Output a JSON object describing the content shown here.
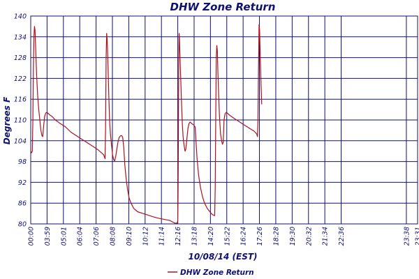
{
  "chart_data": {
    "type": "line",
    "title": "DHW Zone Return",
    "xlabel": "10/08/14 (EST)",
    "ylabel": "Degrees F",
    "ylim": [
      80,
      140
    ],
    "yticks": [
      80,
      86,
      92,
      98,
      104,
      110,
      116,
      122,
      128,
      134,
      140
    ],
    "xlim": [
      0,
      1447
    ],
    "xticks": [
      {
        "label": "00:00",
        "t": 0
      },
      {
        "label": "03:59",
        "t": 61.1
      },
      {
        "label": "05:01",
        "t": 122.2
      },
      {
        "label": "06:04",
        "t": 183.3
      },
      {
        "label": "07:06",
        "t": 244.4
      },
      {
        "label": "08:08",
        "t": 305.5
      },
      {
        "label": "09:10",
        "t": 366.7
      },
      {
        "label": "10:12",
        "t": 427.8
      },
      {
        "label": "11:14",
        "t": 488.9
      },
      {
        "label": "12:16",
        "t": 550.0
      },
      {
        "label": "13:18",
        "t": 611.1
      },
      {
        "label": "14:20",
        "t": 672.2
      },
      {
        "label": "15:22",
        "t": 733.3
      },
      {
        "label": "16:24",
        "t": 794.4
      },
      {
        "label": "17:26",
        "t": 855.5
      },
      {
        "label": "18:28",
        "t": 916.6
      },
      {
        "label": "19:30",
        "t": 977.8
      },
      {
        "label": "20:32",
        "t": 1038.9
      },
      {
        "label": "21:34",
        "t": 1100.0
      },
      {
        "label": "22:36",
        "t": 1161.1
      },
      {
        "label": "23:38",
        "t": 1405.0
      },
      {
        "label": "23:31",
        "t": 1447.0
      }
    ],
    "grid": true,
    "legend_position": "bottom-center",
    "series": [
      {
        "name": "DHW Zone Return",
        "color": "#b0101a",
        "points": [
          [
            0,
            101
          ],
          [
            3,
            100.5
          ],
          [
            6,
            101
          ],
          [
            8,
            110
          ],
          [
            10,
            125
          ],
          [
            12,
            134
          ],
          [
            14,
            137
          ],
          [
            16,
            136
          ],
          [
            18,
            132
          ],
          [
            22,
            123
          ],
          [
            26,
            117
          ],
          [
            30,
            113
          ],
          [
            34,
            110
          ],
          [
            38,
            107
          ],
          [
            42,
            105.5
          ],
          [
            45,
            105.2
          ],
          [
            48,
            108
          ],
          [
            52,
            111
          ],
          [
            56,
            112
          ],
          [
            60,
            112.2
          ],
          [
            64,
            112
          ],
          [
            70,
            111.5
          ],
          [
            80,
            111
          ],
          [
            92,
            110
          ],
          [
            110,
            109
          ],
          [
            130,
            108
          ],
          [
            150,
            106.5
          ],
          [
            170,
            105.5
          ],
          [
            190,
            104.5
          ],
          [
            210,
            103.5
          ],
          [
            230,
            102.5
          ],
          [
            250,
            101.5
          ],
          [
            265,
            100.5
          ],
          [
            272,
            100
          ],
          [
            276,
            99.3
          ],
          [
            278,
            98.8
          ],
          [
            280,
            108
          ],
          [
            282,
            128
          ],
          [
            284,
            135
          ],
          [
            286,
            133
          ],
          [
            289,
            126
          ],
          [
            292,
            117
          ],
          [
            295,
            110
          ],
          [
            298,
            106
          ],
          [
            302,
            103
          ],
          [
            306,
            100
          ],
          [
            310,
            98.6
          ],
          [
            314,
            98.2
          ],
          [
            318,
            99.5
          ],
          [
            322,
            101.5
          ],
          [
            326,
            103.5
          ],
          [
            330,
            104.8
          ],
          [
            335,
            105.4
          ],
          [
            340,
            105.5
          ],
          [
            344,
            105
          ],
          [
            348,
            102
          ],
          [
            352,
            97
          ],
          [
            357,
            93
          ],
          [
            362,
            90
          ],
          [
            368,
            87.5
          ],
          [
            375,
            86
          ],
          [
            385,
            84.5
          ],
          [
            400,
            83.5
          ],
          [
            420,
            83
          ],
          [
            440,
            82.5
          ],
          [
            460,
            82
          ],
          [
            480,
            81.6
          ],
          [
            500,
            81.3
          ],
          [
            520,
            81
          ],
          [
            532,
            80.5
          ],
          [
            540,
            80.2
          ],
          [
            548,
            80.2
          ],
          [
            550,
            81
          ],
          [
            551,
            88
          ],
          [
            552,
            100
          ],
          [
            553,
            118
          ],
          [
            554,
            130
          ],
          [
            555,
            135
          ],
          [
            556,
            134
          ],
          [
            558,
            129
          ],
          [
            561,
            122
          ],
          [
            564,
            115
          ],
          [
            567,
            109
          ],
          [
            570,
            105
          ],
          [
            574,
            102.5
          ],
          [
            577,
            101
          ],
          [
            580,
            101.5
          ],
          [
            584,
            104.5
          ],
          [
            588,
            107.5
          ],
          [
            592,
            109
          ],
          [
            596,
            109.4
          ],
          [
            600,
            109.1
          ],
          [
            605,
            108.8
          ],
          [
            610,
            108.5
          ],
          [
            615,
            108
          ],
          [
            618,
            104
          ],
          [
            622,
            99
          ],
          [
            628,
            94
          ],
          [
            635,
            90.5
          ],
          [
            642,
            88
          ],
          [
            650,
            86
          ],
          [
            660,
            84.5
          ],
          [
            670,
            83.5
          ],
          [
            678,
            82.8
          ],
          [
            684,
            82.5
          ],
          [
            688,
            82.4
          ],
          [
            690,
            90
          ],
          [
            692,
            110
          ],
          [
            694,
            128
          ],
          [
            696,
            131.5
          ],
          [
            698,
            130
          ],
          [
            700,
            124
          ],
          [
            703,
            117
          ],
          [
            706,
            111
          ],
          [
            710,
            106
          ],
          [
            714,
            104
          ],
          [
            717,
            103
          ],
          [
            720,
            103.5
          ],
          [
            723,
            110
          ],
          [
            727,
            111.8
          ],
          [
            731,
            112.2
          ],
          [
            735,
            112
          ],
          [
            745,
            111.3
          ],
          [
            760,
            110.5
          ],
          [
            780,
            109.5
          ],
          [
            800,
            108.5
          ],
          [
            820,
            107.5
          ],
          [
            835,
            106.8
          ],
          [
            845,
            106
          ],
          [
            848,
            105.2
          ],
          [
            850,
            110
          ],
          [
            852,
            125
          ],
          [
            854,
            137.5
          ],
          [
            856,
            136
          ],
          [
            858,
            130
          ],
          [
            860,
            124
          ],
          [
            862,
            119
          ],
          [
            864,
            114.5
          ]
        ]
      }
    ]
  }
}
